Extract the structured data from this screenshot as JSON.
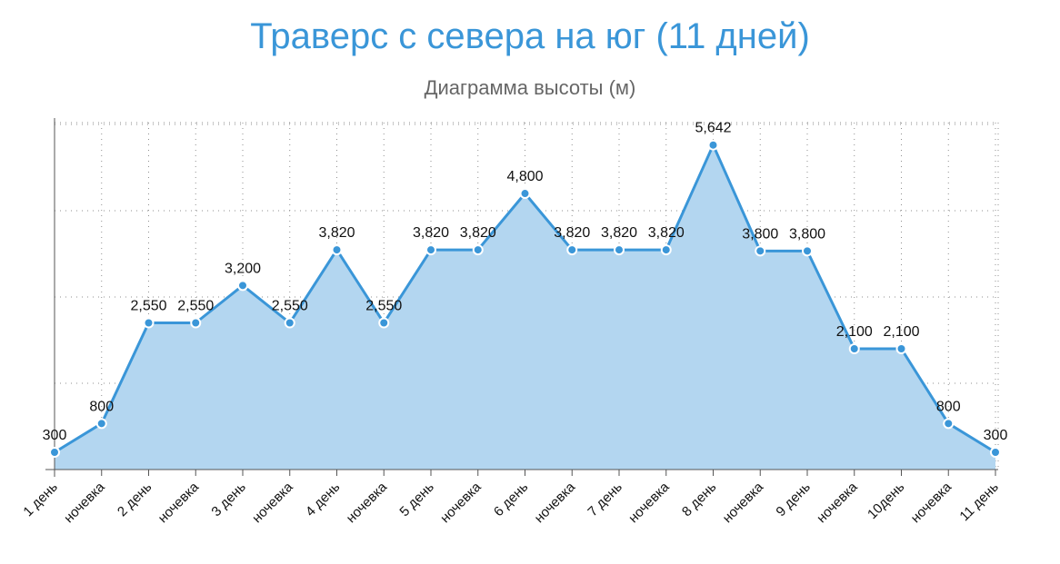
{
  "title": "Траверс с севера на юг (11 дней)",
  "subtitle": "Диаграмма высоты (м)",
  "chart_data": {
    "type": "area",
    "categories": [
      "1 день",
      "ночевка",
      "2 день",
      "ночевка",
      "3 день",
      "ночевка",
      "4 день",
      "ночевка",
      "5 день",
      "ночевка",
      "6 день",
      "ночевка",
      "7 день",
      "ночевка",
      "8 день",
      "ночевка",
      "9 день",
      "ночевка",
      "10день",
      "ночевка",
      "11 день"
    ],
    "values": [
      300,
      800,
      2550,
      2550,
      3200,
      2550,
      3820,
      2550,
      3820,
      3820,
      4800,
      3820,
      3820,
      3820,
      5642,
      3800,
      3800,
      2100,
      2100,
      800,
      300
    ],
    "value_labels": [
      "300",
      "800",
      "2,550",
      "2,550",
      "3,200",
      "2,550",
      "3,820",
      "2,550",
      "3,820",
      "3,820",
      "4,800",
      "3,820",
      "3,820",
      "3,820",
      "5,642",
      "3,800",
      "3,800",
      "2,100",
      "2,100",
      "800",
      "300"
    ],
    "title": "Траверс с севера на юг (11 дней)",
    "subtitle": "Диаграмма высоты (м)",
    "xlabel": "",
    "ylabel": "",
    "ylim": [
      0,
      6000
    ],
    "y_gridlines": [
      0,
      1500,
      3000,
      4500,
      6000
    ],
    "grid": true,
    "legend": "none",
    "colors": {
      "line": "#3a96d8",
      "fill": "#b3d6f0",
      "marker": "#3a96d8",
      "marker_stroke": "#ffffff",
      "title": "#3a96d8"
    }
  }
}
